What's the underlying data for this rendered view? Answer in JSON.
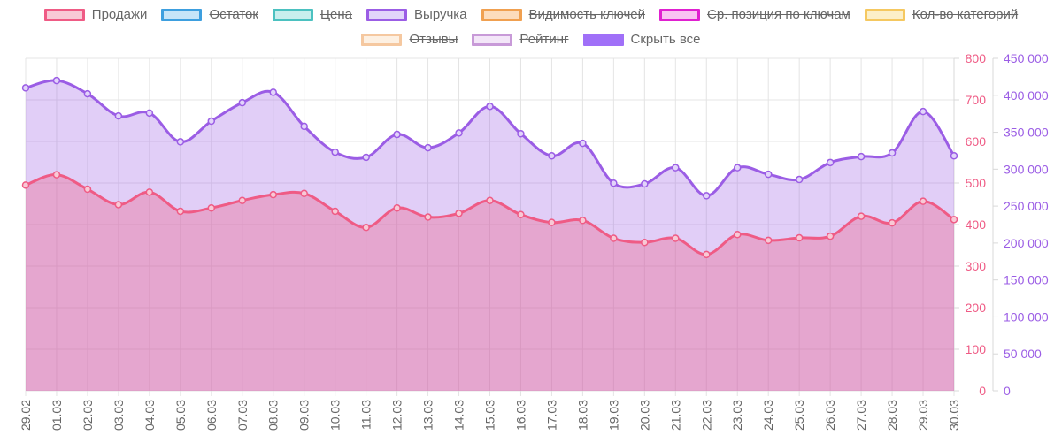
{
  "legend": [
    {
      "label": "Продажи",
      "color": "#ef5b85",
      "fill": "#f8c9d6",
      "hidden": false
    },
    {
      "label": "Остаток",
      "color": "#3d9fdf",
      "fill": "#c5e4f8",
      "hidden": true
    },
    {
      "label": "Цена",
      "color": "#4bc1c0",
      "fill": "#c8eeed",
      "hidden": true
    },
    {
      "label": "Выручка",
      "color": "#9b5de5",
      "fill": "#e2d4fa",
      "hidden": false
    },
    {
      "label": "Видимость ключей",
      "color": "#f0a050",
      "fill": "#fcdcbc",
      "hidden": true
    },
    {
      "label": "Ср. позиция по ключам",
      "color": "#e020d0",
      "fill": "#f9c2f2",
      "hidden": true
    },
    {
      "label": "Кол-во категорий",
      "color": "#f5c860",
      "fill": "#fcefc8",
      "hidden": true
    },
    {
      "label": "Отзывы",
      "color": "#f5c8a0",
      "fill": "#fdf0e2",
      "hidden": true
    },
    {
      "label": "Рейтинг",
      "color": "#c89ad8",
      "fill": "#f3e6f8",
      "hidden": true
    }
  ],
  "hide_all": {
    "label": "Скрыть все",
    "color": "#a070f8"
  },
  "chart_data": {
    "type": "area",
    "categories": [
      "29.02",
      "01.03",
      "02.03",
      "03.03",
      "04.03",
      "05.03",
      "06.03",
      "07.03",
      "08.03",
      "09.03",
      "10.03",
      "11.03",
      "12.03",
      "13.03",
      "14.03",
      "15.03",
      "16.03",
      "17.03",
      "18.03",
      "19.03",
      "20.03",
      "21.03",
      "22.03",
      "23.03",
      "24.03",
      "25.03",
      "26.03",
      "27.03",
      "28.03",
      "29.03",
      "30.03"
    ],
    "series": [
      {
        "name": "Продажи",
        "axis": "left",
        "color": "#ef5b85",
        "fill": "rgba(239,91,133,0.35)",
        "values": [
          495,
          520,
          485,
          448,
          478,
          432,
          440,
          458,
          472,
          475,
          432,
          393,
          440,
          418,
          427,
          458,
          424,
          405,
          410,
          367,
          357,
          367,
          328,
          376,
          362,
          368,
          372,
          420,
          404,
          456,
          412
        ]
      },
      {
        "name": "Выручка",
        "axis": "right",
        "color": "#9b5de5",
        "fill": "rgba(155,93,229,0.30)",
        "values": [
          410000,
          420000,
          402000,
          372000,
          376000,
          337000,
          365000,
          390000,
          404000,
          358000,
          323000,
          316000,
          347000,
          329000,
          349000,
          385000,
          348000,
          318000,
          335000,
          281000,
          280000,
          302000,
          264000,
          302000,
          293000,
          286000,
          309000,
          317000,
          322000,
          378000,
          318000
        ]
      }
    ],
    "y_left": {
      "min": 0,
      "max": 800,
      "step": 100,
      "ticks": [
        "0",
        "100",
        "200",
        "300",
        "400",
        "500",
        "600",
        "700",
        "800"
      ],
      "color": "#ef5b85"
    },
    "y_right": {
      "min": 0,
      "max": 450000,
      "step": 50000,
      "ticks": [
        "0",
        "50 000",
        "100 000",
        "150 000",
        "200 000",
        "250 000",
        "300 000",
        "350 000",
        "400 000",
        "450 000"
      ],
      "color": "#9b5de5"
    },
    "grid": true,
    "legend_position": "top"
  }
}
